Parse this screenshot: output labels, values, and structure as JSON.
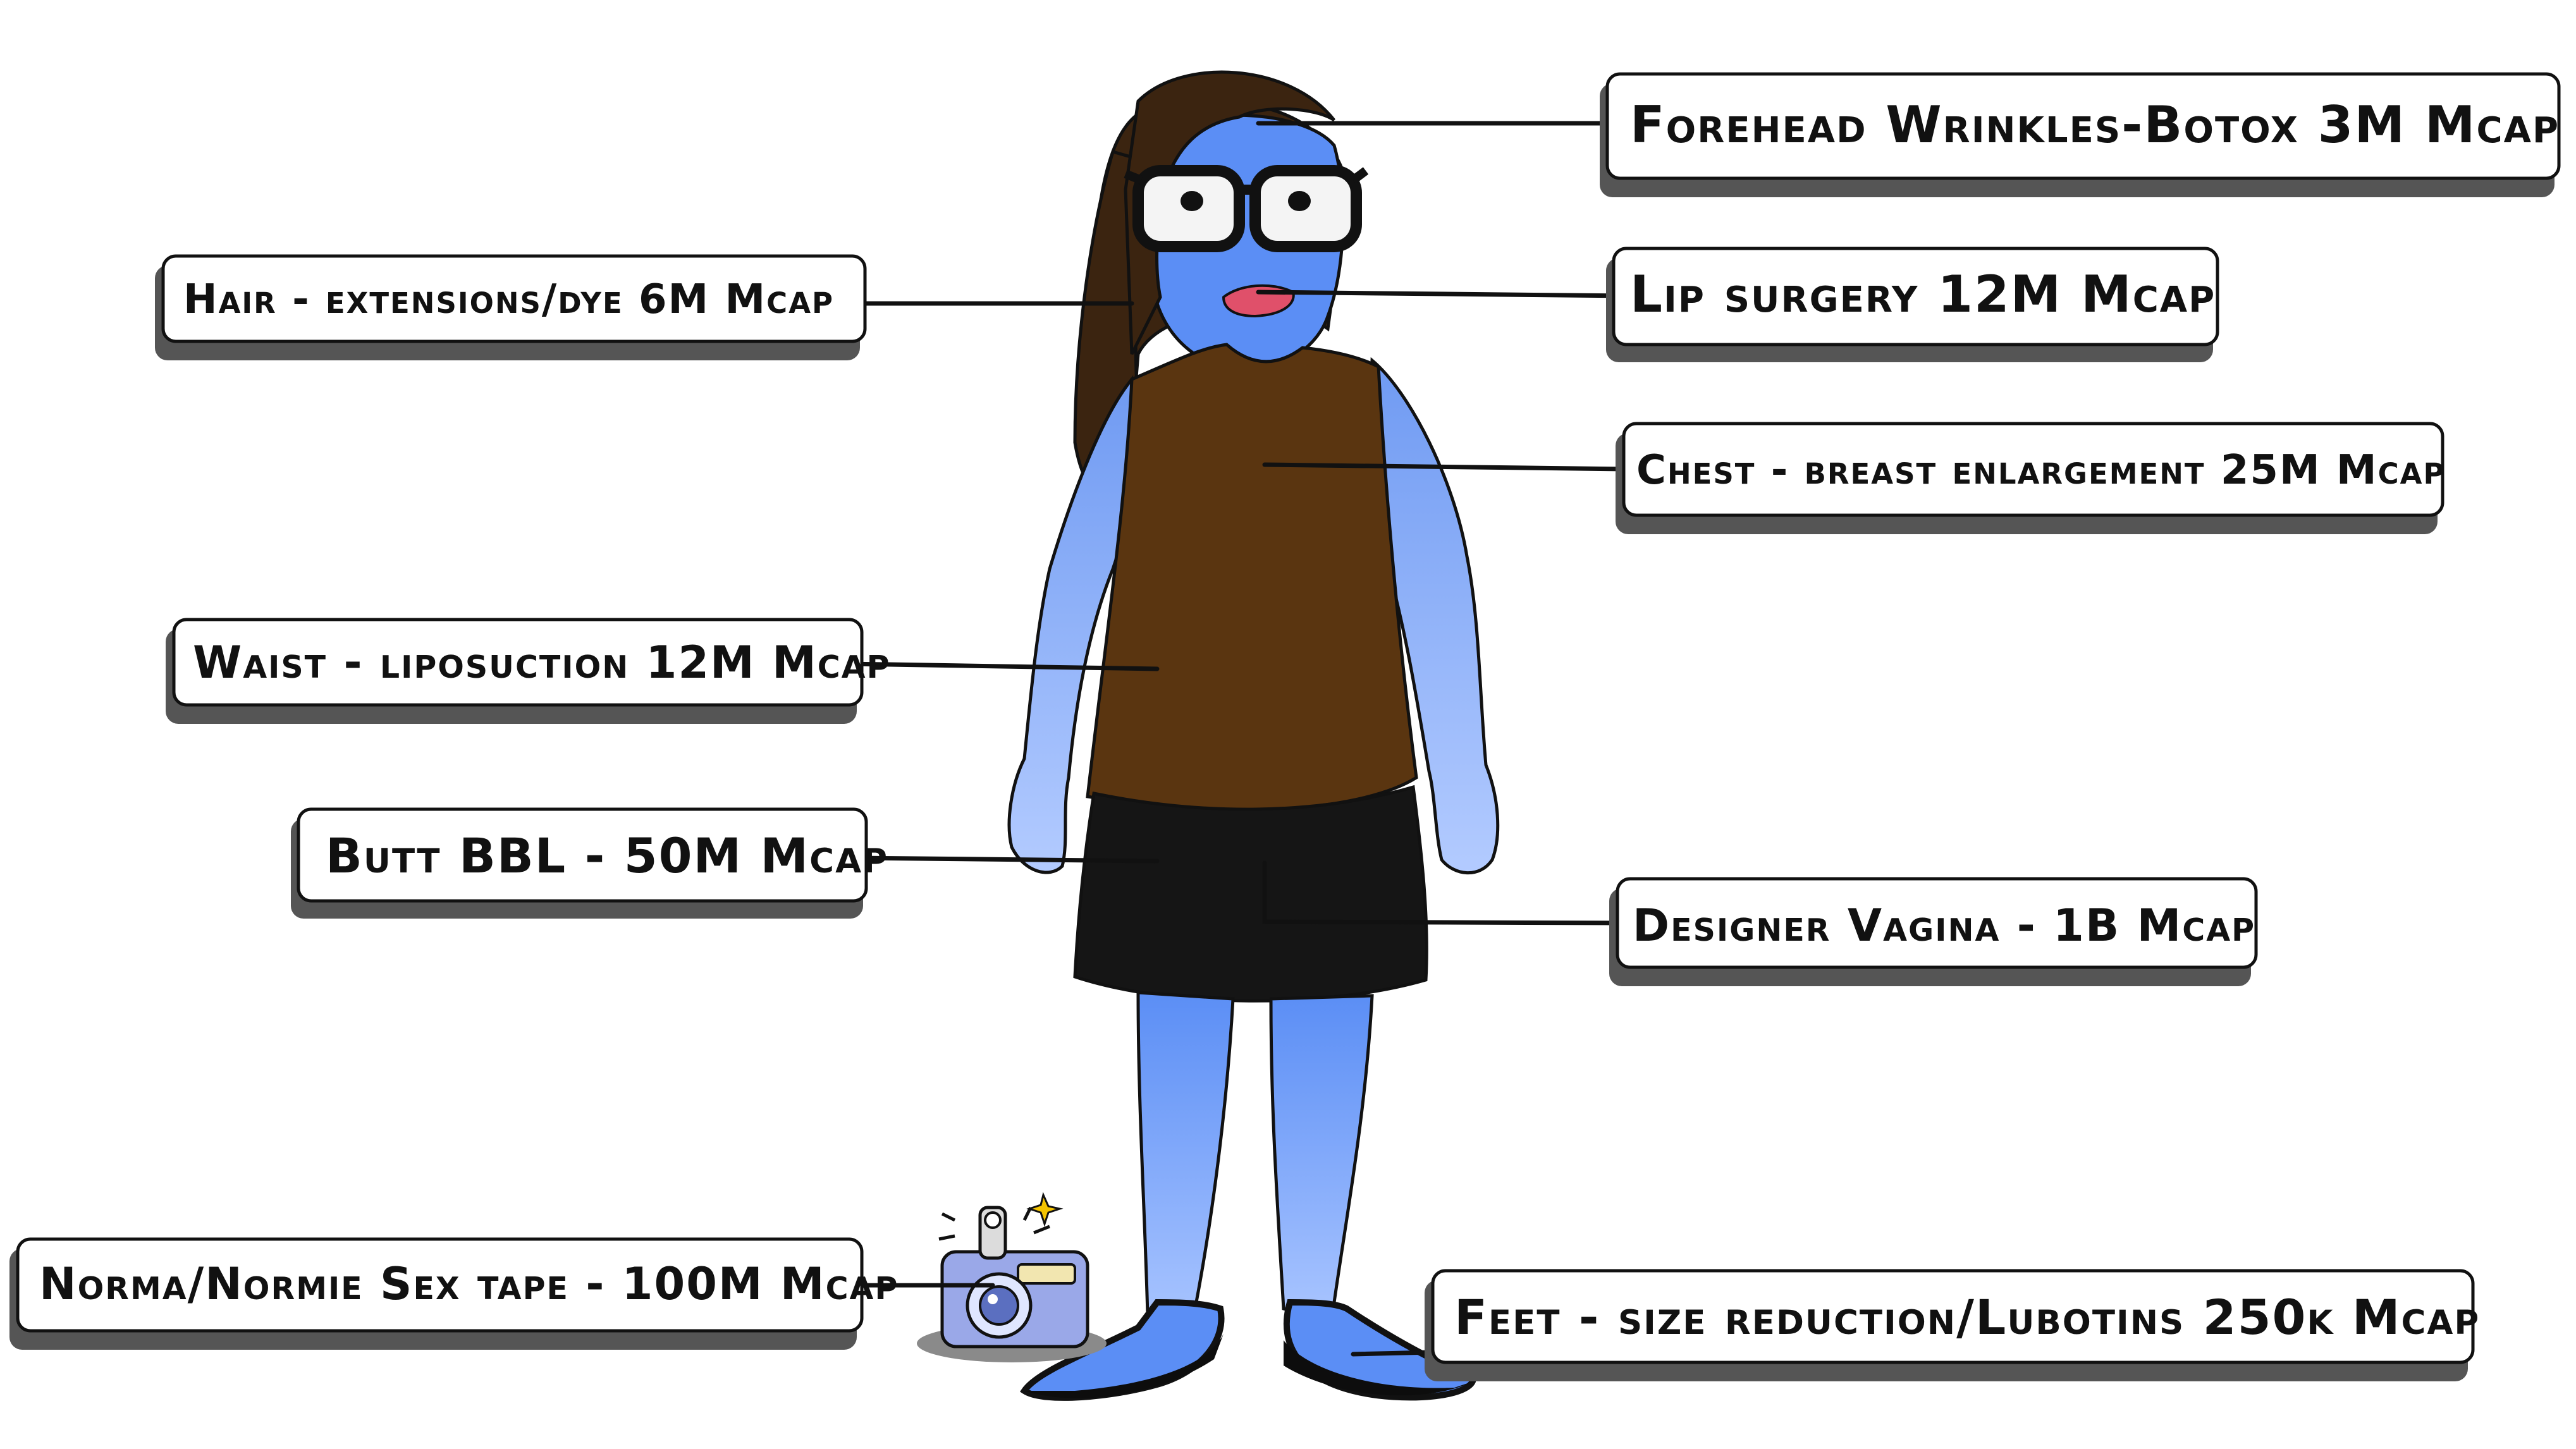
{
  "labels": {
    "forehead": "Forehead Wrinkles-Botox 3M Mcap",
    "hair": "Hair - extensions/dye 6M Mcap",
    "lip": "Lip surgery 12M Mcap",
    "chest": "Chest - breast enlargement 25M Mcap",
    "waist": "Waist - liposuction 12M Mcap",
    "butt": "Butt BBL - 50M Mcap",
    "designer": "Designer Vagina - 1B Mcap",
    "tape": "Norma/Normie Sex tape - 100M Mcap",
    "feet": "Feet - size reduction/Lubotins 250k Mcap"
  },
  "colors": {
    "skin": "#5b8ef5",
    "skin_light": "#9dbcff",
    "hair": "#3b2410",
    "shirt": "#5a3510",
    "skirt": "#151515",
    "lips": "#e0506a",
    "outline": "#111111"
  },
  "icons": [
    "camera-icon",
    "glasses-icon"
  ]
}
